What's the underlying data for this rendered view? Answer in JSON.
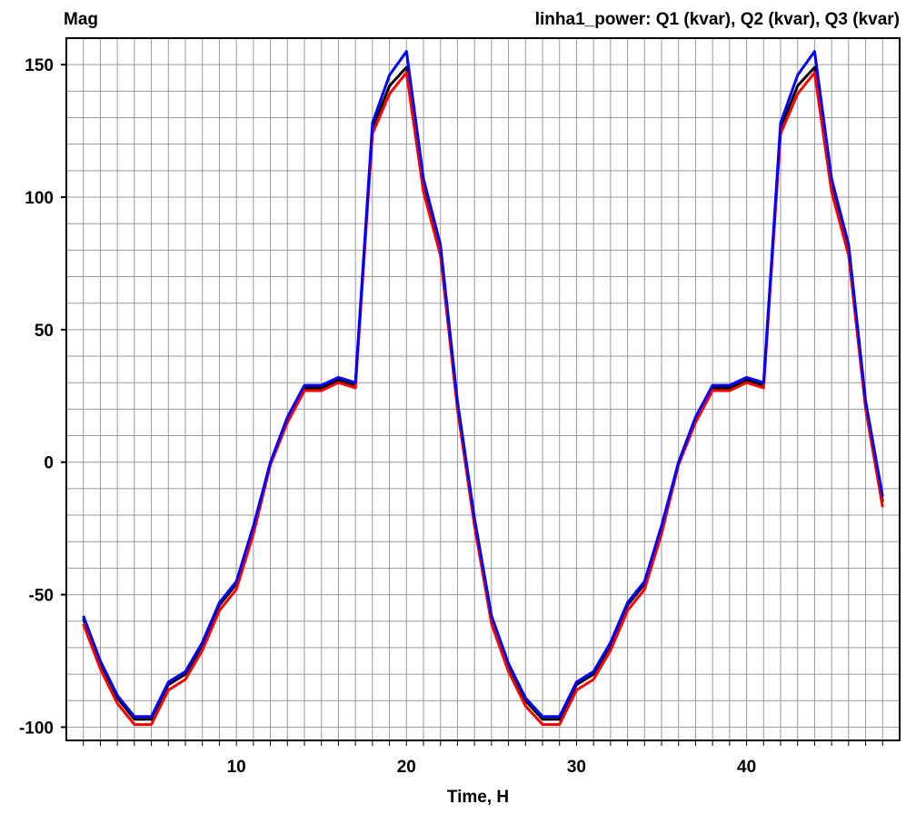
{
  "chart_data": {
    "type": "line",
    "ylabel": "Mag",
    "title": "linha1_power:  Q1 (kvar),  Q2 (kvar),  Q3 (kvar)",
    "xlabel": "Time, H",
    "xlim": [
      0,
      49
    ],
    "ylim": [
      -105,
      160
    ],
    "x_ticks": [
      10,
      20,
      30,
      40
    ],
    "y_ticks": [
      -100,
      -50,
      0,
      50,
      100,
      150
    ],
    "grid": true,
    "x": [
      1,
      2,
      3,
      4,
      5,
      6,
      7,
      8,
      9,
      10,
      11,
      12,
      13,
      14,
      15,
      16,
      17,
      18,
      19,
      20,
      21,
      22,
      23,
      24,
      25,
      26,
      27,
      28,
      29,
      30,
      31,
      32,
      33,
      34,
      35,
      36,
      37,
      38,
      39,
      40,
      41,
      42,
      43,
      44,
      45,
      46,
      47,
      48
    ],
    "series": [
      {
        "name": "Q1 (kvar)",
        "color": "#000000",
        "values": [
          -59,
          -76,
          -89,
          -97,
          -97,
          -84,
          -80,
          -69,
          -54,
          -46,
          -25,
          0,
          16,
          28,
          28,
          31,
          29,
          126,
          142,
          149,
          105,
          80,
          22,
          -22,
          -59,
          -77,
          -90,
          -97,
          -97,
          -84,
          -80,
          -69,
          -54,
          -46,
          -25,
          0,
          16,
          28,
          28,
          31,
          29,
          126,
          142,
          149,
          105,
          80,
          22,
          -15
        ]
      },
      {
        "name": "Q2 (kvar)",
        "color": "#ff0000",
        "values": [
          -61,
          -78,
          -91,
          -99,
          -99,
          -86,
          -82,
          -71,
          -56,
          -48,
          -27,
          -1,
          15,
          27,
          27,
          30,
          28,
          124,
          139,
          147,
          102,
          78,
          20,
          -24,
          -61,
          -79,
          -92,
          -99,
          -99,
          -86,
          -82,
          -71,
          -56,
          -48,
          -27,
          -1,
          15,
          27,
          27,
          30,
          28,
          124,
          139,
          147,
          102,
          78,
          20,
          -17
        ]
      },
      {
        "name": "Q3 (kvar)",
        "color": "#0000ff",
        "values": [
          -58,
          -75,
          -88,
          -96,
          -96,
          -83,
          -79,
          -68,
          -53,
          -45,
          -24,
          0,
          17,
          29,
          29,
          32,
          30,
          128,
          146,
          155,
          107,
          82,
          23,
          -21,
          -58,
          -76,
          -89,
          -96,
          -96,
          -83,
          -79,
          -68,
          -53,
          -45,
          -24,
          0,
          17,
          29,
          29,
          32,
          30,
          128,
          146,
          155,
          107,
          82,
          23,
          -13
        ]
      }
    ]
  }
}
